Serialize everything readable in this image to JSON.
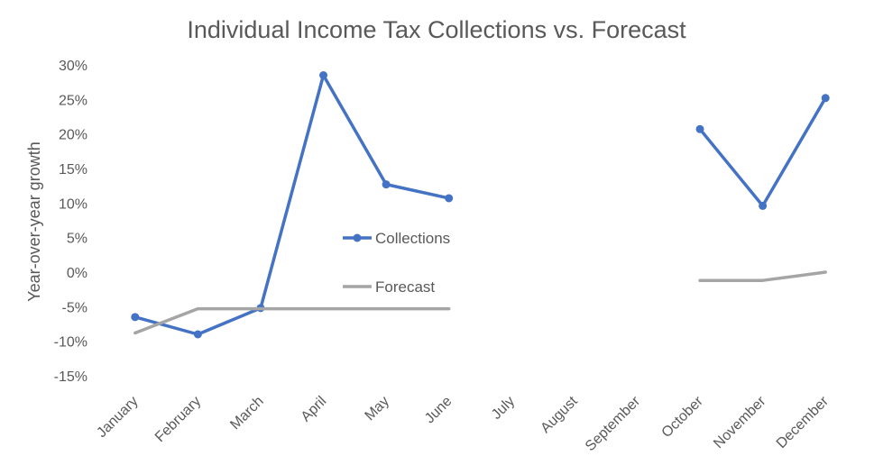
{
  "chart_data": {
    "type": "line",
    "title": "Individual Income Tax Collections vs. Forecast",
    "xlabel": "",
    "ylabel": "Year-over-year growth",
    "categories": [
      "January",
      "February",
      "March",
      "April",
      "May",
      "June",
      "July",
      "August",
      "September",
      "October",
      "November",
      "December"
    ],
    "ylim": [
      -15,
      30
    ],
    "yticks": [
      "30%",
      "25%",
      "20%",
      "15%",
      "10%",
      "5%",
      "0%",
      "-5%",
      "-10%",
      "-15%"
    ],
    "ytick_values": [
      30,
      25,
      20,
      15,
      10,
      5,
      0,
      -5,
      -10,
      -15
    ],
    "grid": false,
    "legend_position": "center",
    "series": [
      {
        "name": "Collections",
        "color": "#4472C4",
        "markers": true,
        "values": [
          -6.5,
          -9.0,
          -5.2,
          28.5,
          12.7,
          10.7,
          null,
          null,
          null,
          20.7,
          9.6,
          25.2
        ]
      },
      {
        "name": "Forecast",
        "color": "#A5A5A5",
        "markers": false,
        "values": [
          -8.8,
          -5.3,
          -5.3,
          -5.3,
          -5.3,
          -5.3,
          null,
          null,
          null,
          -1.2,
          -1.2,
          0.0
        ]
      }
    ]
  }
}
